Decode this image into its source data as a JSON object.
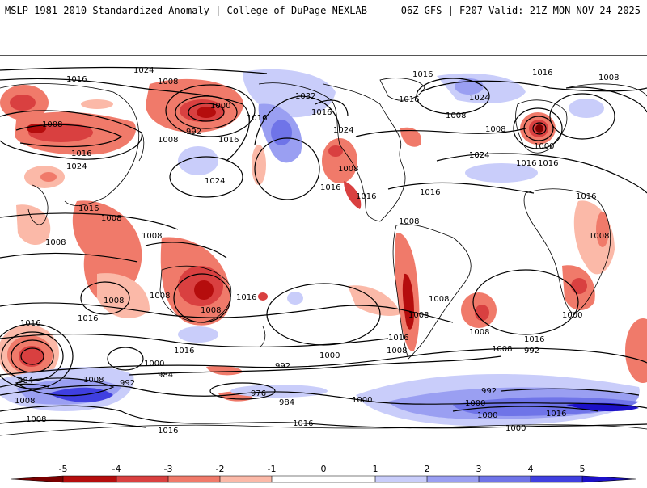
{
  "header": {
    "title": "MSLP 1981-2010 Standardized Anomaly | College of DuPage NEXLAB",
    "run_info": "06Z GFS | F207 Valid: 21Z MON NOV 24 2025"
  },
  "colors": {
    "neg5": "#7a0000",
    "neg4": "#b50d0d",
    "neg3": "#d94040",
    "neg2": "#f07a6a",
    "neg1": "#fbb9a8",
    "zero": "#ffffff",
    "pos1": "#c9cdfa",
    "pos2": "#9a9ff2",
    "pos3": "#6f74e8",
    "pos4": "#3f3fe0",
    "pos5": "#1c10c8",
    "contour": "#000000",
    "coast": "#000000"
  },
  "isobar_labels": [
    {
      "id": "l1",
      "text": "1024"
    },
    {
      "id": "l2",
      "text": "1016"
    },
    {
      "id": "l3",
      "text": "1008"
    },
    {
      "id": "l4",
      "text": "1008"
    },
    {
      "id": "l5",
      "text": "1000"
    },
    {
      "id": "l6",
      "text": "992"
    },
    {
      "id": "l7",
      "text": "1016"
    },
    {
      "id": "l8",
      "text": "1032"
    },
    {
      "id": "l9",
      "text": "1016"
    },
    {
      "id": "l10",
      "text": "1016"
    },
    {
      "id": "l11",
      "text": "1024"
    },
    {
      "id": "l12",
      "text": "1008"
    },
    {
      "id": "l13",
      "text": "1016"
    },
    {
      "id": "l14",
      "text": "1024"
    },
    {
      "id": "l15",
      "text": "1016"
    },
    {
      "id": "l16",
      "text": "1008"
    },
    {
      "id": "l17",
      "text": "1024"
    },
    {
      "id": "l18",
      "text": "1008"
    },
    {
      "id": "l19",
      "text": "1016"
    },
    {
      "id": "l20",
      "text": "1024"
    },
    {
      "id": "l21",
      "text": "1016"
    },
    {
      "id": "l22",
      "text": "1008"
    },
    {
      "id": "l23",
      "text": "1000"
    },
    {
      "id": "l24",
      "text": "1008"
    },
    {
      "id": "l25",
      "text": "1016"
    },
    {
      "id": "l26",
      "text": "1024"
    },
    {
      "id": "l27",
      "text": "1016"
    },
    {
      "id": "l28",
      "text": "1016"
    },
    {
      "id": "l29",
      "text": "1016"
    },
    {
      "id": "l30",
      "text": "1008"
    },
    {
      "id": "l31",
      "text": "1008"
    },
    {
      "id": "l32",
      "text": "1008"
    },
    {
      "id": "l33",
      "text": "1016"
    },
    {
      "id": "l34",
      "text": "1008"
    },
    {
      "id": "l35",
      "text": "1016"
    },
    {
      "id": "l36",
      "text": "1024"
    },
    {
      "id": "l37",
      "text": "1016"
    },
    {
      "id": "l38",
      "text": "1008"
    },
    {
      "id": "l39",
      "text": "1008"
    },
    {
      "id": "l40",
      "text": "1008"
    },
    {
      "id": "l41",
      "text": "1008"
    },
    {
      "id": "l42",
      "text": "1008"
    },
    {
      "id": "l43",
      "text": "1016"
    },
    {
      "id": "l44",
      "text": "1016"
    },
    {
      "id": "l45",
      "text": "1000"
    },
    {
      "id": "l46",
      "text": "1008"
    },
    {
      "id": "l47",
      "text": "1016"
    },
    {
      "id": "l48",
      "text": "1008"
    },
    {
      "id": "l49",
      "text": "1016"
    },
    {
      "id": "l50",
      "text": "1008"
    },
    {
      "id": "l51",
      "text": "1016"
    },
    {
      "id": "l52",
      "text": "1000"
    },
    {
      "id": "l53",
      "text": "984"
    },
    {
      "id": "l54",
      "text": "1008"
    },
    {
      "id": "l55",
      "text": "992"
    },
    {
      "id": "l56",
      "text": "984"
    },
    {
      "id": "l57",
      "text": "1000"
    },
    {
      "id": "l58",
      "text": "976"
    },
    {
      "id": "l59",
      "text": "984"
    },
    {
      "id": "l60",
      "text": "992"
    },
    {
      "id": "l61",
      "text": "1000"
    },
    {
      "id": "l62",
      "text": "992"
    },
    {
      "id": "l63",
      "text": "1000"
    },
    {
      "id": "l64",
      "text": "992"
    },
    {
      "id": "l65",
      "text": "1000"
    },
    {
      "id": "l66",
      "text": "1008"
    },
    {
      "id": "l67",
      "text": "1016"
    },
    {
      "id": "l68",
      "text": "1016"
    },
    {
      "id": "l69",
      "text": "1000"
    },
    {
      "id": "l70",
      "text": "1016"
    },
    {
      "id": "l71",
      "text": "1008"
    },
    {
      "id": "l72",
      "text": "1016"
    },
    {
      "id": "l73",
      "text": "1008"
    }
  ],
  "colorbar": {
    "ticks": [
      "-5",
      "-4",
      "-3",
      "-2",
      "-1",
      "0",
      "1",
      "2",
      "3",
      "4",
      "5"
    ]
  }
}
